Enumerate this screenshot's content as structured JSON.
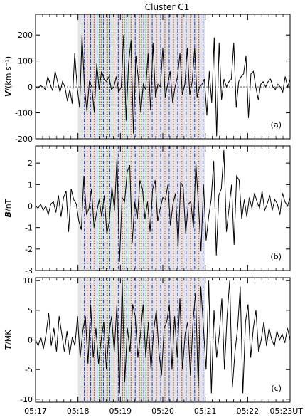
{
  "title": "Cluster C1",
  "chart_data": [
    {
      "type": "line",
      "panel_label": "(a)",
      "ylabel_symbol": "V",
      "ylabel_unit": "/(km s⁻¹)",
      "ylim": [
        -200,
        280
      ],
      "yticks": [
        -200,
        -100,
        0,
        100,
        200
      ],
      "series": [
        {
          "values": [
            0,
            -5,
            5,
            0,
            -10,
            40,
            10,
            -15,
            60,
            20,
            -20,
            20,
            0,
            -55,
            -10,
            -65,
            130,
            0,
            -80,
            200,
            0,
            -95,
            20,
            0,
            -100,
            90,
            -10,
            60,
            30,
            20,
            40,
            -10,
            0,
            40,
            -20,
            0,
            200,
            -130,
            90,
            180,
            -180,
            120,
            30,
            -100,
            10,
            -10,
            130,
            -90,
            170,
            -40,
            10,
            0,
            150,
            -40,
            10,
            60,
            -60,
            0,
            40,
            130,
            -30,
            10,
            150,
            -30,
            20,
            150,
            -40,
            0,
            10,
            30,
            -110,
            60,
            -60,
            190,
            -190,
            170,
            -50,
            30,
            0,
            20,
            30,
            170,
            -80,
            20,
            40,
            50,
            120,
            -120,
            50,
            60,
            0,
            -50,
            10,
            20,
            0,
            20,
            30,
            0,
            -10,
            10,
            0,
            -20,
            40,
            0,
            30
          ]
        }
      ]
    },
    {
      "type": "line",
      "panel_label": "(b)",
      "ylabel_symbol": "B",
      "ylabel_unit": "/nT",
      "ylim": [
        -3,
        2.8
      ],
      "yticks": [
        -3,
        -2,
        -1,
        0,
        1,
        2
      ],
      "series": [
        {
          "values": [
            0,
            -0.1,
            0.1,
            -0.2,
            0,
            -0.4,
            0.1,
            0.2,
            -0.3,
            0.5,
            -0.5,
            0.4,
            0.7,
            -1.2,
            0.8,
            0.3,
            0.1,
            -0.7,
            -1.1,
            1.4,
            -0.4,
            -0.1,
            0.8,
            -1.0,
            -0.3,
            0.3,
            -0.5,
            0.5,
            -1.3,
            -0.7,
            0.9,
            -0.2,
            2.3,
            -2.6,
            0.4,
            0.2,
            1.6,
            1.9,
            -1.7,
            0.2,
            -0.6,
            1.2,
            0.8,
            -0.6,
            0.2,
            -1.2,
            0.8,
            1.2,
            -0.7,
            -0.1,
            0.4,
            0.3,
            1.0,
            -0.9,
            0.1,
            0.6,
            -1.9,
            1.1,
            0.9,
            -1.3,
            0.1,
            0.2,
            -1.0,
            2.0,
            0.1,
            -2.1,
            1.0,
            -1.6,
            -0.5,
            0.3,
            2.1,
            -2.3,
            0.5,
            0.8,
            2.6,
            -1.2,
            -0.1,
            1.0,
            -1.8,
            1.4,
            1.2,
            -0.6,
            0.3,
            -0.5,
            0.4,
            -0.1,
            0.6,
            0.2,
            -0.1,
            0.7,
            -0.2,
            0.1,
            0.5,
            -0.2,
            0.3,
            0.1,
            -0.4,
            0.6,
            0.2,
            0,
            0.4
          ]
        }
      ]
    },
    {
      "type": "line",
      "panel_label": "(c)",
      "ylabel_symbol": "T",
      "ylabel_unit": "/MK",
      "ylim": [
        -10.5,
        10.5
      ],
      "yticks": [
        -10,
        -5,
        0,
        5,
        10
      ],
      "series": [
        {
          "values": [
            0,
            -1,
            0.5,
            -1.5,
            1,
            4.5,
            -1,
            2,
            -2,
            4,
            1,
            -2,
            1.5,
            -2.5,
            0.5,
            -1,
            4,
            -3,
            1.5,
            4,
            -4,
            6,
            -3,
            2,
            -4,
            0,
            3,
            -5,
            1,
            4,
            -2,
            6,
            -9,
            10,
            -7,
            2,
            -2,
            6,
            4,
            -3,
            1,
            6,
            -3,
            3,
            -5,
            1.5,
            5,
            -2,
            -6,
            2,
            3,
            6,
            -5,
            4,
            -3,
            7,
            -5,
            1,
            3,
            -6,
            3,
            8,
            -8,
            9,
            2,
            -5,
            10,
            -9,
            5,
            -3,
            1,
            7,
            -5,
            4,
            10,
            -8,
            -2,
            2,
            9,
            -9,
            3,
            6,
            -3,
            2,
            5,
            -2,
            0,
            3,
            -1,
            2,
            0,
            -1,
            1.5,
            0,
            1,
            -0.5,
            2,
            0
          ]
        }
      ]
    }
  ],
  "x_axis": {
    "tick_labels": [
      "05:17",
      "05:18",
      "05:19",
      "05:20",
      "05:21",
      "05:22",
      "05:23UT"
    ],
    "range_minutes": [
      0,
      6
    ]
  },
  "shaded_interval_minutes": [
    1.0,
    4.0
  ],
  "event_lines": {
    "blue_dash_dot_minutes": [
      1.15,
      1.3,
      1.45,
      1.6,
      1.75,
      1.95,
      2.15,
      2.35,
      2.55,
      2.75,
      2.95,
      3.15,
      3.35,
      3.55,
      3.75,
      3.95
    ],
    "red_dotted_minutes": [
      1.22,
      1.38,
      1.52,
      1.68,
      1.85,
      2.05,
      2.25,
      2.45,
      2.65,
      2.85,
      3.05,
      3.25,
      3.45,
      3.65,
      3.85
    ],
    "green_dotted_minutes": [
      1.5,
      1.55,
      1.7,
      1.8,
      2.1,
      2.2,
      2.5,
      2.6
    ],
    "colors": {
      "blue": "#2233cc",
      "red": "#cc2222",
      "green": "#22bb22",
      "shade": "#e3e3e3"
    }
  }
}
